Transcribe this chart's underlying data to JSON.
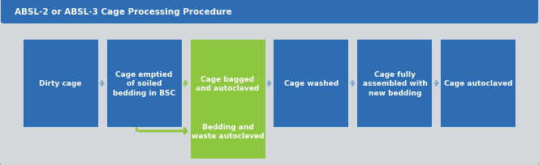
{
  "title": "ABSL-2 or ABSL-3 Cage Processing Procedure",
  "title_color": "#FFFFFF",
  "title_bg_color": "#2E6DB4",
  "bg_color": "#D4D7DB",
  "outer_bg_color": "#2E6DB4",
  "blue_box_color": "#2E6DB4",
  "green_box_color": "#8DC63F",
  "arrow_blue": "#7FA8CC",
  "arrow_green": "#8DC63F",
  "figsize": [
    6.64,
    2.05
  ],
  "dpi": 100,
  "boxes": [
    {
      "label": "Dirty cage",
      "col": 0
    },
    {
      "label": "Cage emptied\nof soiled\nbedding in BSC",
      "col": 1
    },
    {
      "label": "Cage bagged\nand autoclaved",
      "col": 2,
      "green": true
    },
    {
      "label": "Cage washed",
      "col": 3
    },
    {
      "label": "Cage fully\nassembled with\nnew bedding",
      "col": 4
    },
    {
      "label": "Cage autoclaved",
      "col": 5
    }
  ],
  "box_bottom_label": "Bedding and\nwaste autoclaved"
}
